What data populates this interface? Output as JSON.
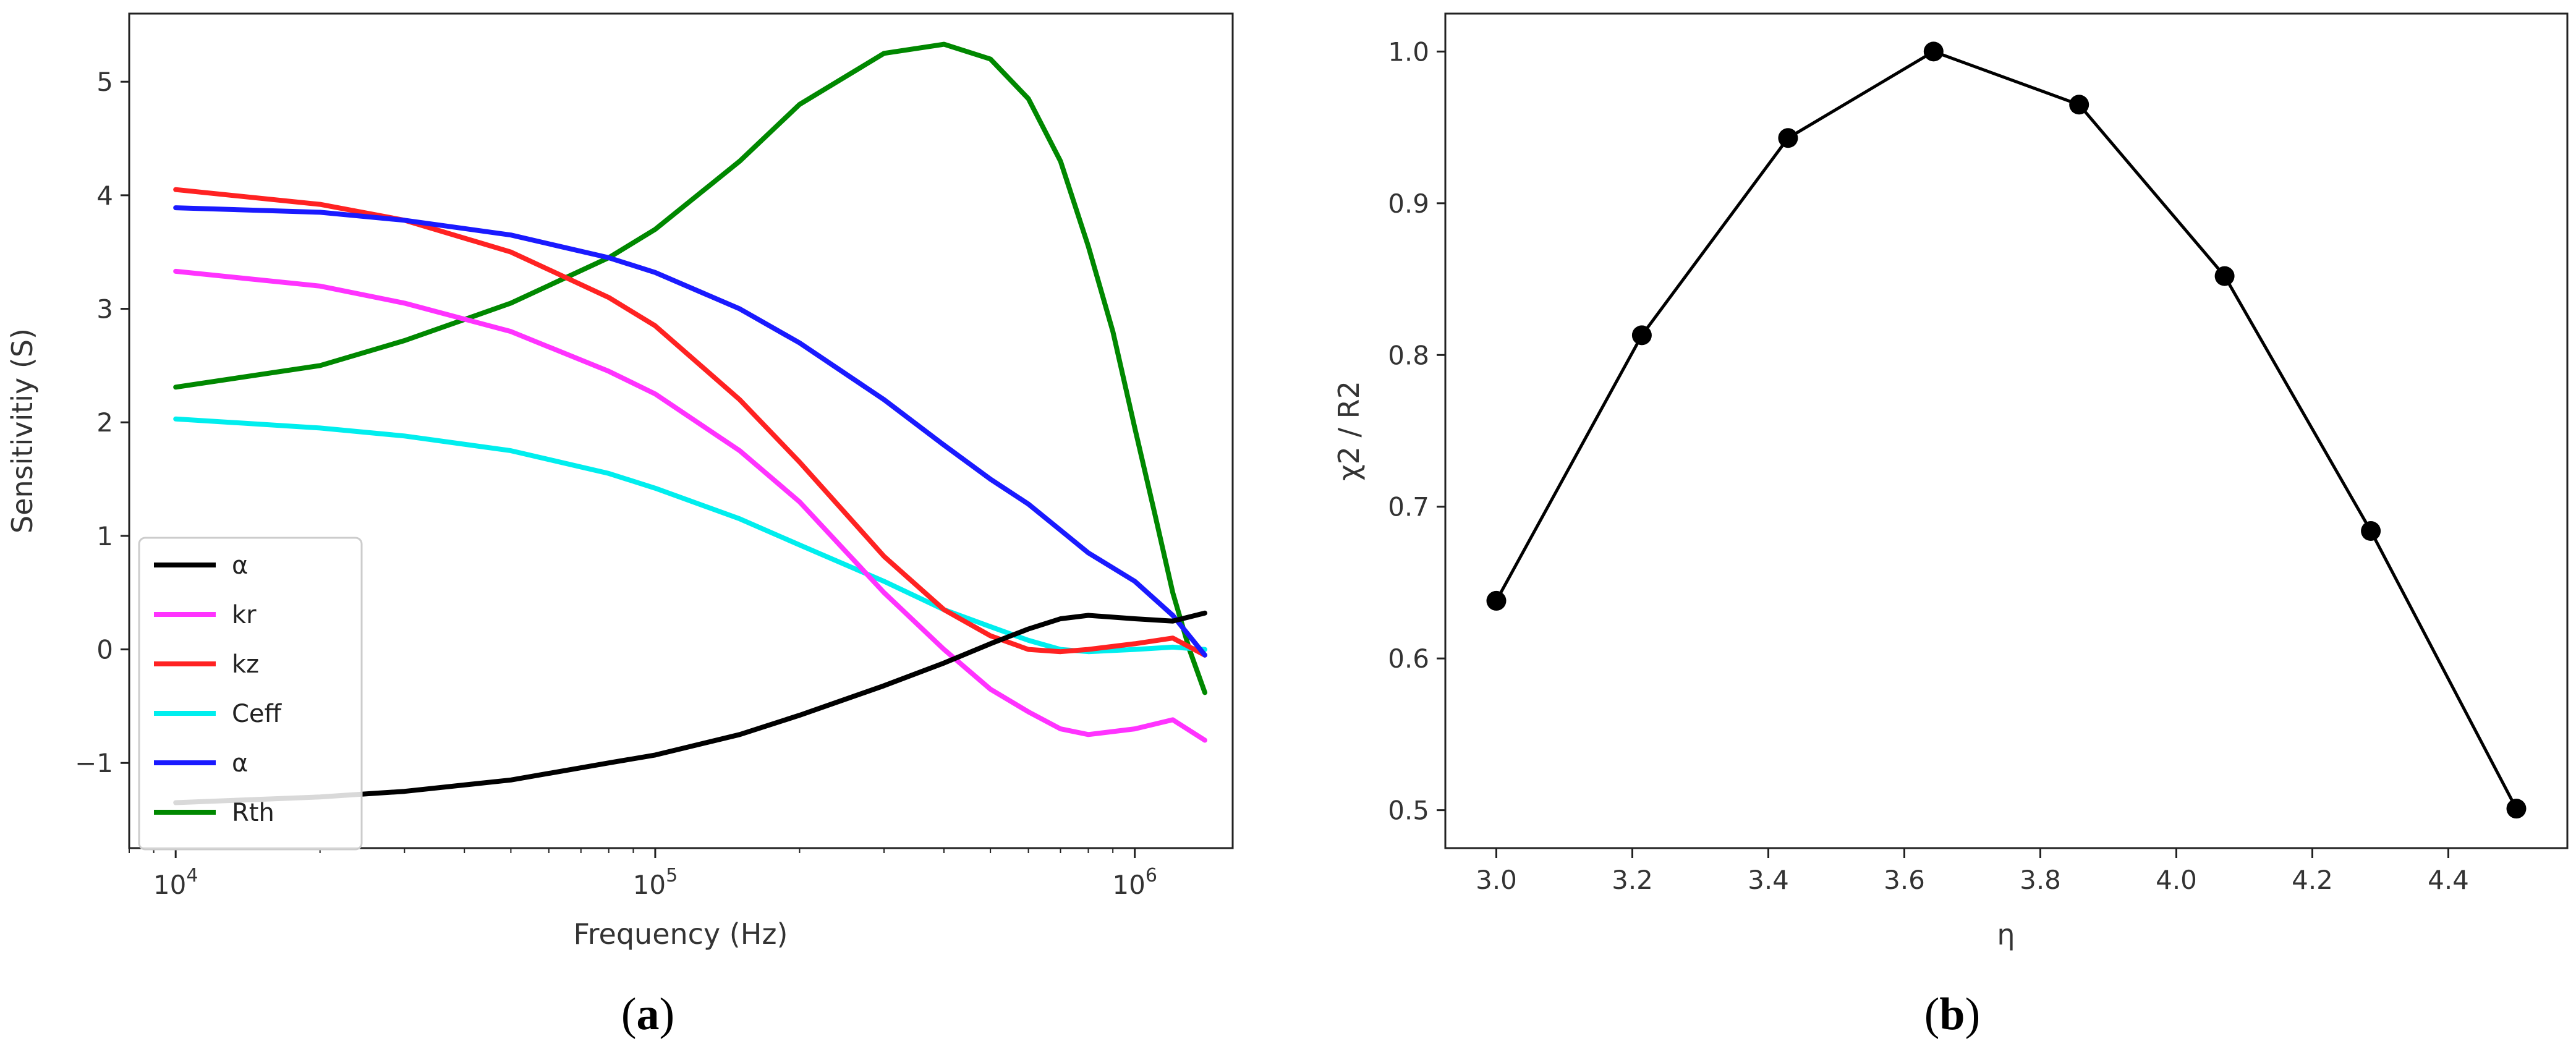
{
  "chart_data": [
    {
      "panel": "a",
      "caption": "(a)",
      "type": "line",
      "title": "",
      "xlabel": "Frequency (Hz)",
      "ylabel": "Sensitivitiy (S)",
      "xscale": "log",
      "xlim": [
        8000,
        1600000
      ],
      "ylim": [
        -1.75,
        5.6
      ],
      "xticks": [
        {
          "value": 10000,
          "base": "10",
          "exp": "4"
        },
        {
          "value": 100000,
          "base": "10",
          "exp": "5"
        },
        {
          "value": 1000000,
          "base": "10",
          "exp": "6"
        }
      ],
      "yticks": [
        {
          "value": -1,
          "label": "−1"
        },
        {
          "value": 0,
          "label": "0"
        },
        {
          "value": 1,
          "label": "1"
        },
        {
          "value": 2,
          "label": "2"
        },
        {
          "value": 3,
          "label": "3"
        },
        {
          "value": 4,
          "label": "4"
        },
        {
          "value": 5,
          "label": "5"
        }
      ],
      "legend_position": "lower-left",
      "series": [
        {
          "name": "α",
          "color": "#000000",
          "x": [
            10000,
            20000,
            30000,
            50000,
            80000,
            100000,
            150000,
            200000,
            300000,
            400000,
            500000,
            600000,
            700000,
            800000,
            1000000,
            1200000,
            1400000
          ],
          "y": [
            -1.35,
            -1.3,
            -1.25,
            -1.15,
            -1.0,
            -0.93,
            -0.75,
            -0.58,
            -0.32,
            -0.12,
            0.05,
            0.18,
            0.27,
            0.3,
            0.27,
            0.25,
            0.32
          ]
        },
        {
          "name": "kr",
          "color": "#ff33ff",
          "x": [
            10000,
            20000,
            30000,
            50000,
            80000,
            100000,
            150000,
            200000,
            300000,
            400000,
            500000,
            600000,
            700000,
            800000,
            1000000,
            1200000,
            1400000
          ],
          "y": [
            3.33,
            3.2,
            3.05,
            2.8,
            2.45,
            2.25,
            1.75,
            1.3,
            0.5,
            0.0,
            -0.35,
            -0.55,
            -0.7,
            -0.75,
            -0.7,
            -0.62,
            -0.8
          ]
        },
        {
          "name": "kz",
          "color": "#ff2222",
          "x": [
            10000,
            20000,
            30000,
            50000,
            80000,
            100000,
            150000,
            200000,
            300000,
            400000,
            500000,
            600000,
            700000,
            800000,
            1000000,
            1200000,
            1400000
          ],
          "y": [
            4.05,
            3.92,
            3.78,
            3.5,
            3.1,
            2.85,
            2.2,
            1.65,
            0.82,
            0.35,
            0.12,
            0.0,
            -0.02,
            0.0,
            0.05,
            0.1,
            -0.05
          ]
        },
        {
          "name": "Ceff",
          "color": "#00eeee",
          "x": [
            10000,
            20000,
            30000,
            50000,
            80000,
            100000,
            150000,
            200000,
            300000,
            400000,
            500000,
            600000,
            700000,
            800000,
            1000000,
            1200000,
            1400000
          ],
          "y": [
            2.03,
            1.95,
            1.88,
            1.75,
            1.55,
            1.42,
            1.15,
            0.92,
            0.6,
            0.35,
            0.2,
            0.08,
            0.0,
            -0.02,
            0.0,
            0.02,
            0.0
          ]
        },
        {
          "name": "α",
          "color": "#1a1aff",
          "x": [
            10000,
            20000,
            30000,
            50000,
            80000,
            100000,
            150000,
            200000,
            300000,
            400000,
            500000,
            600000,
            700000,
            800000,
            1000000,
            1200000,
            1400000
          ],
          "y": [
            3.89,
            3.85,
            3.78,
            3.65,
            3.45,
            3.32,
            3.0,
            2.7,
            2.2,
            1.8,
            1.5,
            1.28,
            1.05,
            0.85,
            0.6,
            0.3,
            -0.05
          ]
        },
        {
          "name": "Rth",
          "color": "#008800",
          "x": [
            10000,
            20000,
            30000,
            50000,
            80000,
            100000,
            150000,
            200000,
            300000,
            400000,
            500000,
            600000,
            700000,
            800000,
            900000,
            1000000,
            1100000,
            1200000,
            1300000,
            1400000
          ],
          "y": [
            2.31,
            2.5,
            2.72,
            3.05,
            3.45,
            3.7,
            4.3,
            4.8,
            5.25,
            5.33,
            5.2,
            4.85,
            4.3,
            3.55,
            2.8,
            1.95,
            1.2,
            0.5,
            0.0,
            -0.38
          ]
        }
      ]
    },
    {
      "panel": "b",
      "caption": "(b)",
      "type": "line",
      "markers": true,
      "title": "",
      "xlabel": "η",
      "ylabel": "χ2 / R2",
      "xlim": [
        2.925,
        4.575
      ],
      "ylim": [
        0.475,
        1.025
      ],
      "xticks": [
        {
          "value": 3.0,
          "label": "3.0"
        },
        {
          "value": 3.2,
          "label": "3.2"
        },
        {
          "value": 3.4,
          "label": "3.4"
        },
        {
          "value": 3.6,
          "label": "3.6"
        },
        {
          "value": 3.8,
          "label": "3.8"
        },
        {
          "value": 4.0,
          "label": "4.0"
        },
        {
          "value": 4.2,
          "label": "4.2"
        },
        {
          "value": 4.4,
          "label": "4.4"
        }
      ],
      "yticks": [
        {
          "value": 0.5,
          "label": "0.5"
        },
        {
          "value": 0.6,
          "label": "0.6"
        },
        {
          "value": 0.7,
          "label": "0.7"
        },
        {
          "value": 0.8,
          "label": "0.8"
        },
        {
          "value": 0.9,
          "label": "0.9"
        },
        {
          "value": 1.0,
          "label": "1.0"
        }
      ],
      "series": [
        {
          "name": "χ2 / R2",
          "color": "#000000",
          "x": [
            3.0,
            3.214,
            3.429,
            3.643,
            3.857,
            4.071,
            4.286,
            4.5
          ],
          "y": [
            0.638,
            0.813,
            0.943,
            1.0,
            0.965,
            0.852,
            0.684,
            0.501
          ]
        }
      ]
    }
  ]
}
